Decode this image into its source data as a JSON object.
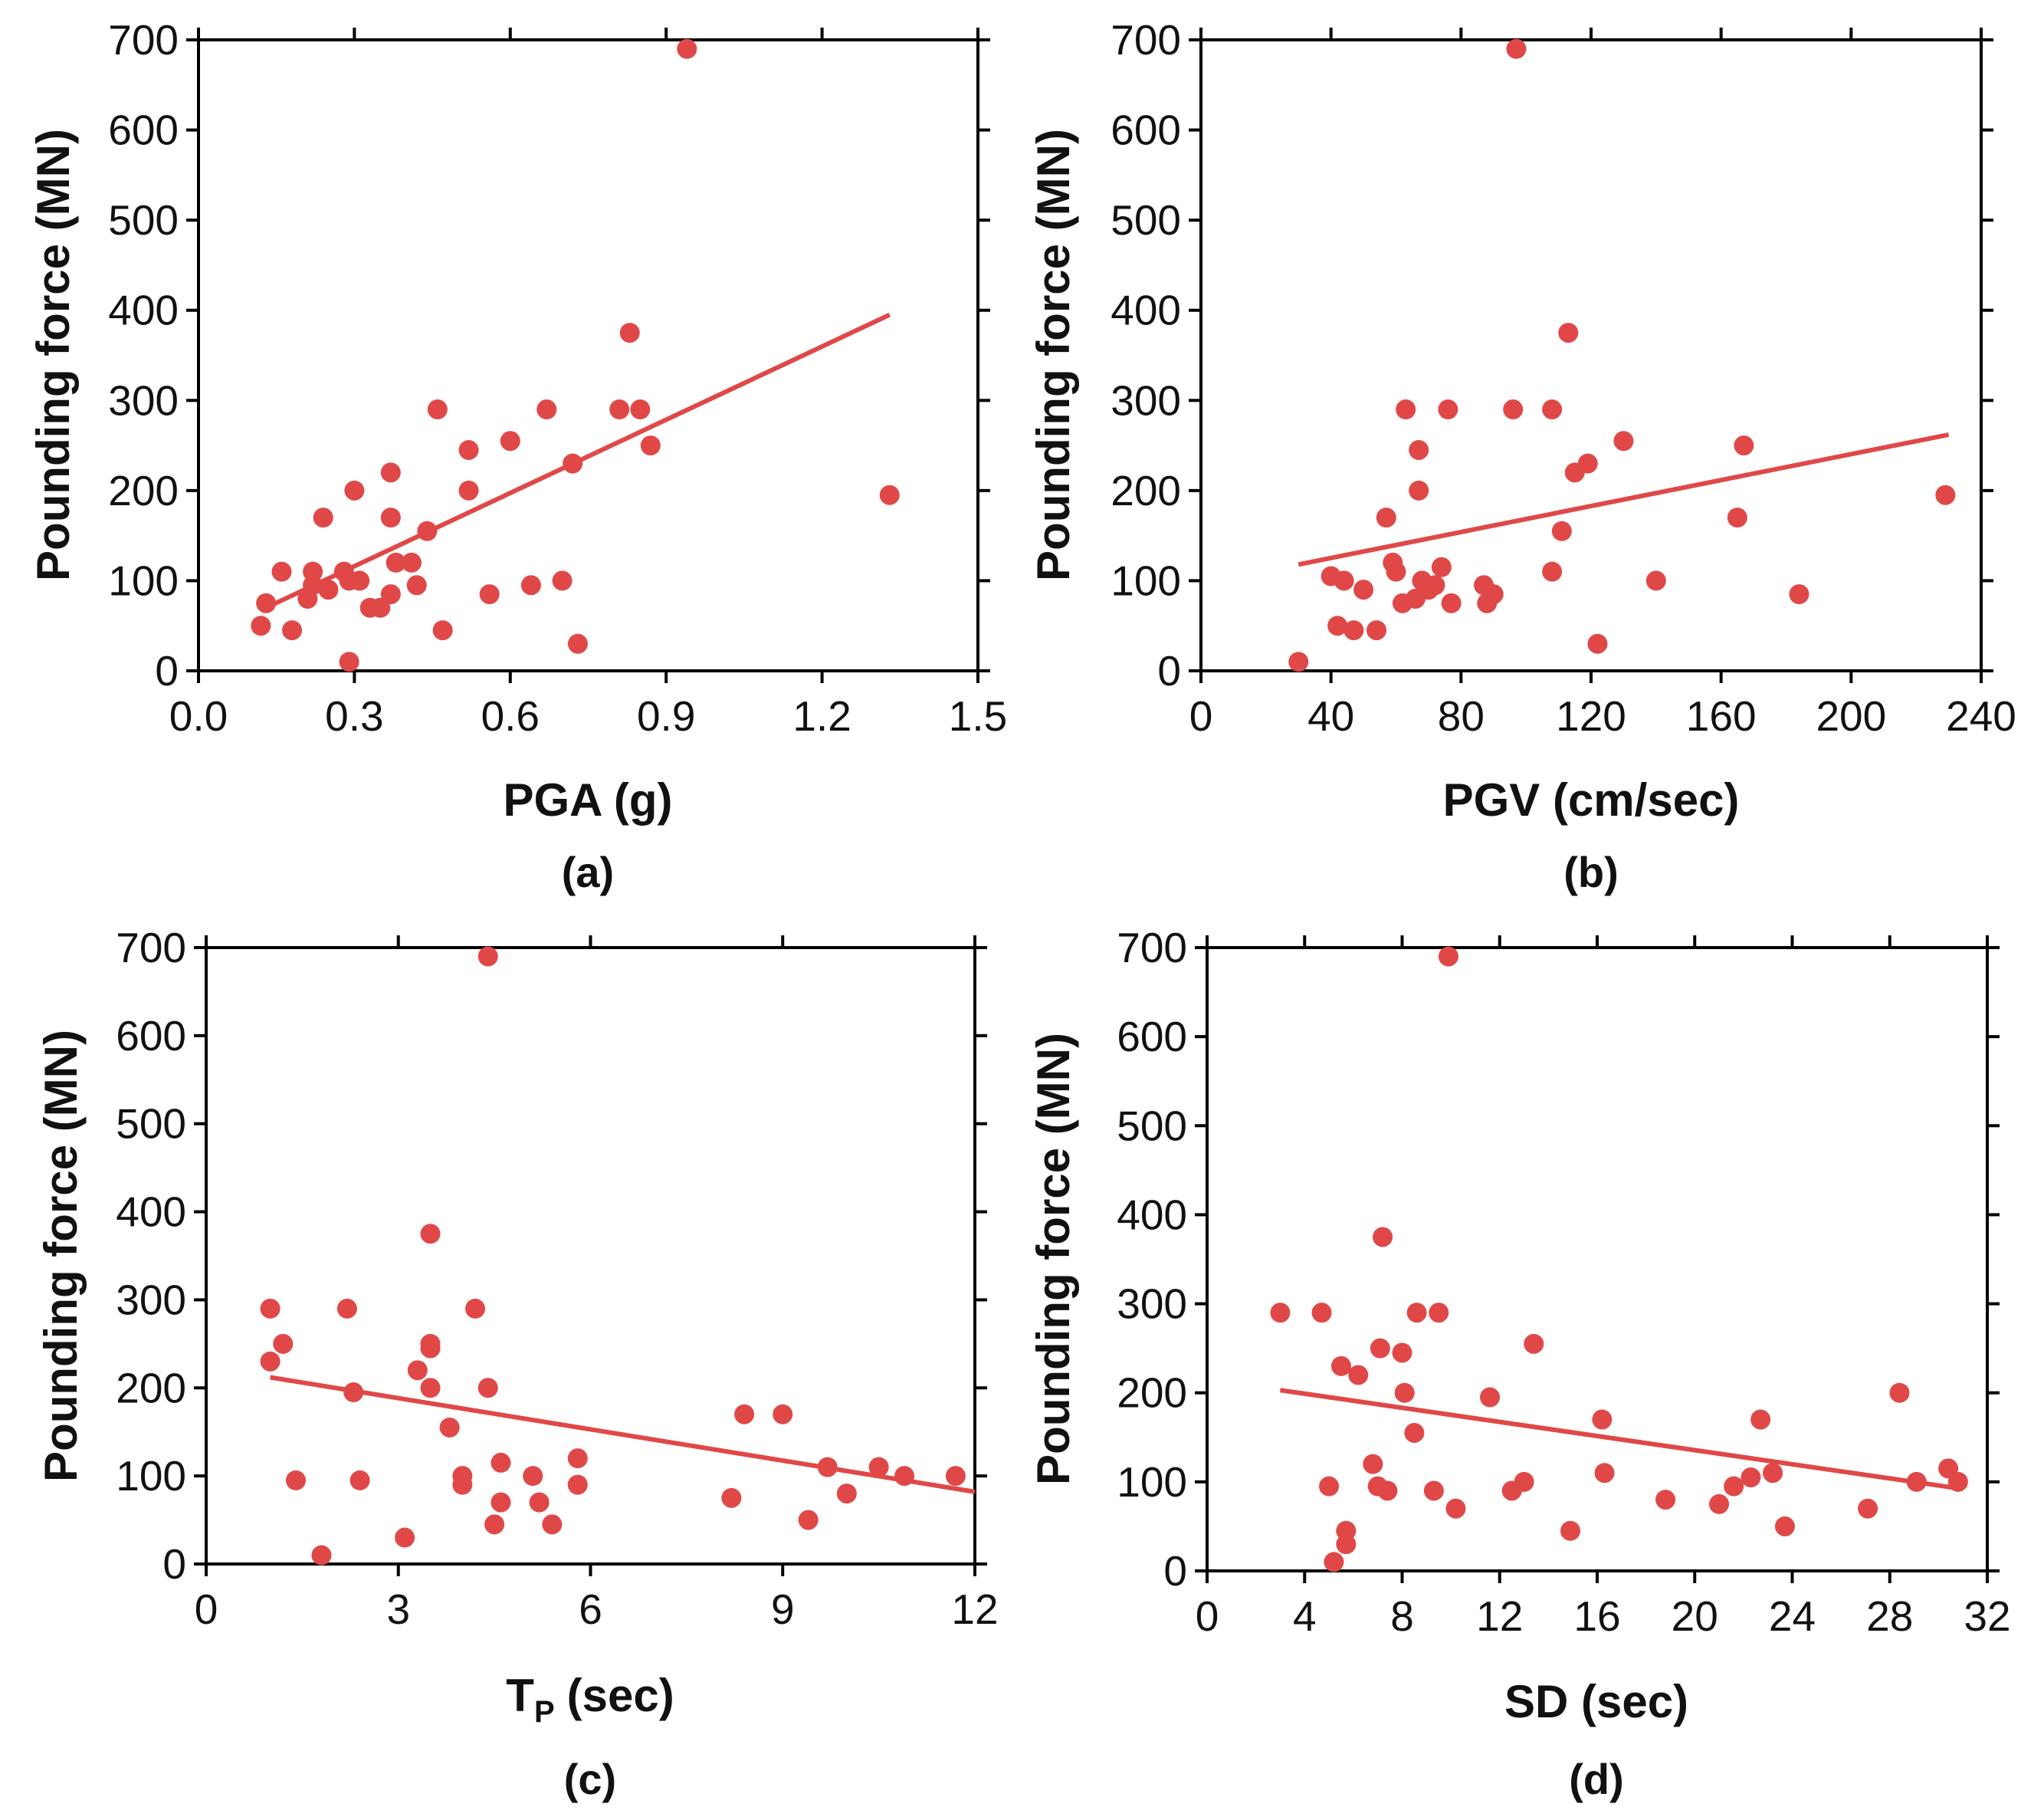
{
  "chart_data": [
    {
      "type": "scatter",
      "panel_label": "(a)",
      "xlabel": "PGA (g)",
      "ylabel": "Pounding force (MN)",
      "xlim": [
        0,
        1.5
      ],
      "ylim": [
        0,
        700
      ],
      "xticks": [
        0,
        0.3,
        0.6,
        0.9,
        1.2,
        1.5
      ],
      "xtick_labels": [
        "0.0",
        "0.3",
        "0.6",
        "0.9",
        "1.2",
        "1.5"
      ],
      "yticks": [
        0,
        100,
        200,
        300,
        400,
        500,
        600,
        700
      ],
      "ytick_labels": [
        "0",
        "100",
        "200",
        "300",
        "400",
        "500",
        "600",
        "700"
      ],
      "trendline": [
        [
          0.13,
          70
        ],
        [
          1.33,
          395
        ]
      ],
      "points": [
        [
          0.12,
          50
        ],
        [
          0.13,
          75
        ],
        [
          0.16,
          110
        ],
        [
          0.18,
          45
        ],
        [
          0.21,
          80
        ],
        [
          0.22,
          110
        ],
        [
          0.22,
          95
        ],
        [
          0.24,
          170
        ],
        [
          0.25,
          90
        ],
        [
          0.28,
          110
        ],
        [
          0.29,
          100
        ],
        [
          0.29,
          10
        ],
        [
          0.3,
          200
        ],
        [
          0.31,
          100
        ],
        [
          0.33,
          70
        ],
        [
          0.35,
          70
        ],
        [
          0.37,
          220
        ],
        [
          0.37,
          170
        ],
        [
          0.37,
          85
        ],
        [
          0.38,
          120
        ],
        [
          0.41,
          120
        ],
        [
          0.42,
          95
        ],
        [
          0.44,
          155
        ],
        [
          0.46,
          290
        ],
        [
          0.47,
          45
        ],
        [
          0.52,
          245
        ],
        [
          0.52,
          200
        ],
        [
          0.56,
          85
        ],
        [
          0.6,
          255
        ],
        [
          0.64,
          95
        ],
        [
          0.67,
          290
        ],
        [
          0.7,
          100
        ],
        [
          0.72,
          230
        ],
        [
          0.73,
          30
        ],
        [
          0.81,
          290
        ],
        [
          0.83,
          375
        ],
        [
          0.85,
          290
        ],
        [
          0.87,
          250
        ],
        [
          0.94,
          690
        ],
        [
          1.33,
          195
        ]
      ]
    },
    {
      "type": "scatter",
      "panel_label": "(b)",
      "xlabel": "PGV (cm/sec)",
      "ylabel": "Pounding force (MN)",
      "xlim": [
        0,
        240
      ],
      "ylim": [
        0,
        700
      ],
      "xticks": [
        0,
        40,
        80,
        120,
        160,
        200,
        240
      ],
      "xtick_labels": [
        "0",
        "40",
        "80",
        "120",
        "160",
        "200",
        "240"
      ],
      "yticks": [
        0,
        100,
        200,
        300,
        400,
        500,
        600,
        700
      ],
      "ytick_labels": [
        "0",
        "100",
        "200",
        "300",
        "400",
        "500",
        "600",
        "700"
      ],
      "trendline": [
        [
          30,
          118
        ],
        [
          230,
          262
        ]
      ],
      "points": [
        [
          30,
          10
        ],
        [
          40,
          105
        ],
        [
          42,
          50
        ],
        [
          44,
          100
        ],
        [
          47,
          45
        ],
        [
          50,
          90
        ],
        [
          54,
          45
        ],
        [
          57,
          170
        ],
        [
          59,
          120
        ],
        [
          60,
          110
        ],
        [
          62,
          75
        ],
        [
          63,
          290
        ],
        [
          66,
          80
        ],
        [
          67,
          245
        ],
        [
          67,
          200
        ],
        [
          68,
          100
        ],
        [
          70,
          90
        ],
        [
          72,
          95
        ],
        [
          74,
          115
        ],
        [
          76,
          290
        ],
        [
          77,
          75
        ],
        [
          87,
          95
        ],
        [
          88,
          75
        ],
        [
          90,
          85
        ],
        [
          96,
          290
        ],
        [
          97,
          690
        ],
        [
          108,
          290
        ],
        [
          108,
          110
        ],
        [
          111,
          155
        ],
        [
          113,
          375
        ],
        [
          115,
          220
        ],
        [
          119,
          230
        ],
        [
          122,
          30
        ],
        [
          130,
          255
        ],
        [
          140,
          100
        ],
        [
          165,
          170
        ],
        [
          167,
          250
        ],
        [
          184,
          85
        ],
        [
          229,
          195
        ]
      ]
    },
    {
      "type": "scatter",
      "panel_label": "(c)",
      "xlabel": "T",
      "xlabel_subscript": "P",
      "xlabel_suffix": "(sec)",
      "ylabel": "Pounding force (MN)",
      "xlim": [
        0,
        12
      ],
      "ylim": [
        0,
        700
      ],
      "xticks": [
        0,
        3,
        6,
        9,
        12
      ],
      "xtick_labels": [
        "0",
        "3",
        "6",
        "9",
        "12"
      ],
      "yticks": [
        0,
        100,
        200,
        300,
        400,
        500,
        600,
        700
      ],
      "ytick_labels": [
        "0",
        "100",
        "200",
        "300",
        "400",
        "500",
        "600",
        "700"
      ],
      "trendline": [
        [
          1.0,
          212
        ],
        [
          12,
          82
        ]
      ],
      "points": [
        [
          1.0,
          290
        ],
        [
          1.0,
          230
        ],
        [
          1.2,
          250
        ],
        [
          1.4,
          95
        ],
        [
          1.8,
          10
        ],
        [
          2.2,
          290
        ],
        [
          2.3,
          195
        ],
        [
          2.4,
          95
        ],
        [
          3.1,
          30
        ],
        [
          3.3,
          220
        ],
        [
          3.5,
          375
        ],
        [
          3.5,
          250
        ],
        [
          3.5,
          245
        ],
        [
          3.5,
          200
        ],
        [
          3.8,
          155
        ],
        [
          4.0,
          100
        ],
        [
          4.0,
          90
        ],
        [
          4.2,
          290
        ],
        [
          4.4,
          200
        ],
        [
          4.4,
          690
        ],
        [
          4.5,
          45
        ],
        [
          4.6,
          115
        ],
        [
          4.6,
          70
        ],
        [
          5.1,
          100
        ],
        [
          5.2,
          70
        ],
        [
          5.4,
          45
        ],
        [
          5.8,
          90
        ],
        [
          5.8,
          120
        ],
        [
          8.2,
          75
        ],
        [
          8.4,
          170
        ],
        [
          9.0,
          170
        ],
        [
          9.4,
          50
        ],
        [
          9.7,
          110
        ],
        [
          10.0,
          80
        ],
        [
          10.5,
          110
        ],
        [
          10.9,
          100
        ],
        [
          11.7,
          100
        ]
      ]
    },
    {
      "type": "scatter",
      "panel_label": "(d)",
      "xlabel": "SD (sec)",
      "ylabel": "Pounding force (MN)",
      "xlim": [
        0,
        32
      ],
      "ylim": [
        0,
        700
      ],
      "xticks": [
        0,
        4,
        8,
        12,
        16,
        20,
        24,
        28,
        32
      ],
      "xtick_labels": [
        "0",
        "4",
        "8",
        "12",
        "16",
        "20",
        "24",
        "28",
        "32"
      ],
      "yticks": [
        0,
        100,
        200,
        300,
        400,
        500,
        600,
        700
      ],
      "ytick_labels": [
        "0",
        "100",
        "200",
        "300",
        "400",
        "500",
        "600",
        "700"
      ],
      "trendline": [
        [
          3,
          203
        ],
        [
          31,
          92
        ]
      ],
      "points": [
        [
          3.0,
          290
        ],
        [
          4.7,
          290
        ],
        [
          5.0,
          95
        ],
        [
          5.2,
          10
        ],
        [
          5.5,
          230
        ],
        [
          5.7,
          45
        ],
        [
          5.7,
          30
        ],
        [
          6.2,
          220
        ],
        [
          6.8,
          120
        ],
        [
          7.0,
          95
        ],
        [
          7.1,
          250
        ],
        [
          7.2,
          375
        ],
        [
          7.4,
          90
        ],
        [
          8.0,
          245
        ],
        [
          8.1,
          200
        ],
        [
          8.5,
          155
        ],
        [
          8.6,
          290
        ],
        [
          9.3,
          90
        ],
        [
          9.5,
          290
        ],
        [
          9.9,
          690
        ],
        [
          10.2,
          70
        ],
        [
          11.6,
          195
        ],
        [
          12.5,
          90
        ],
        [
          13.0,
          100
        ],
        [
          13.4,
          255
        ],
        [
          14.9,
          45
        ],
        [
          16.2,
          170
        ],
        [
          16.3,
          110
        ],
        [
          18.8,
          80
        ],
        [
          21.0,
          75
        ],
        [
          21.6,
          95
        ],
        [
          22.3,
          105
        ],
        [
          22.7,
          170
        ],
        [
          23.2,
          110
        ],
        [
          23.7,
          50
        ],
        [
          27.1,
          70
        ],
        [
          28.4,
          200
        ],
        [
          29.1,
          100
        ],
        [
          30.4,
          115
        ],
        [
          30.8,
          100
        ]
      ]
    }
  ]
}
